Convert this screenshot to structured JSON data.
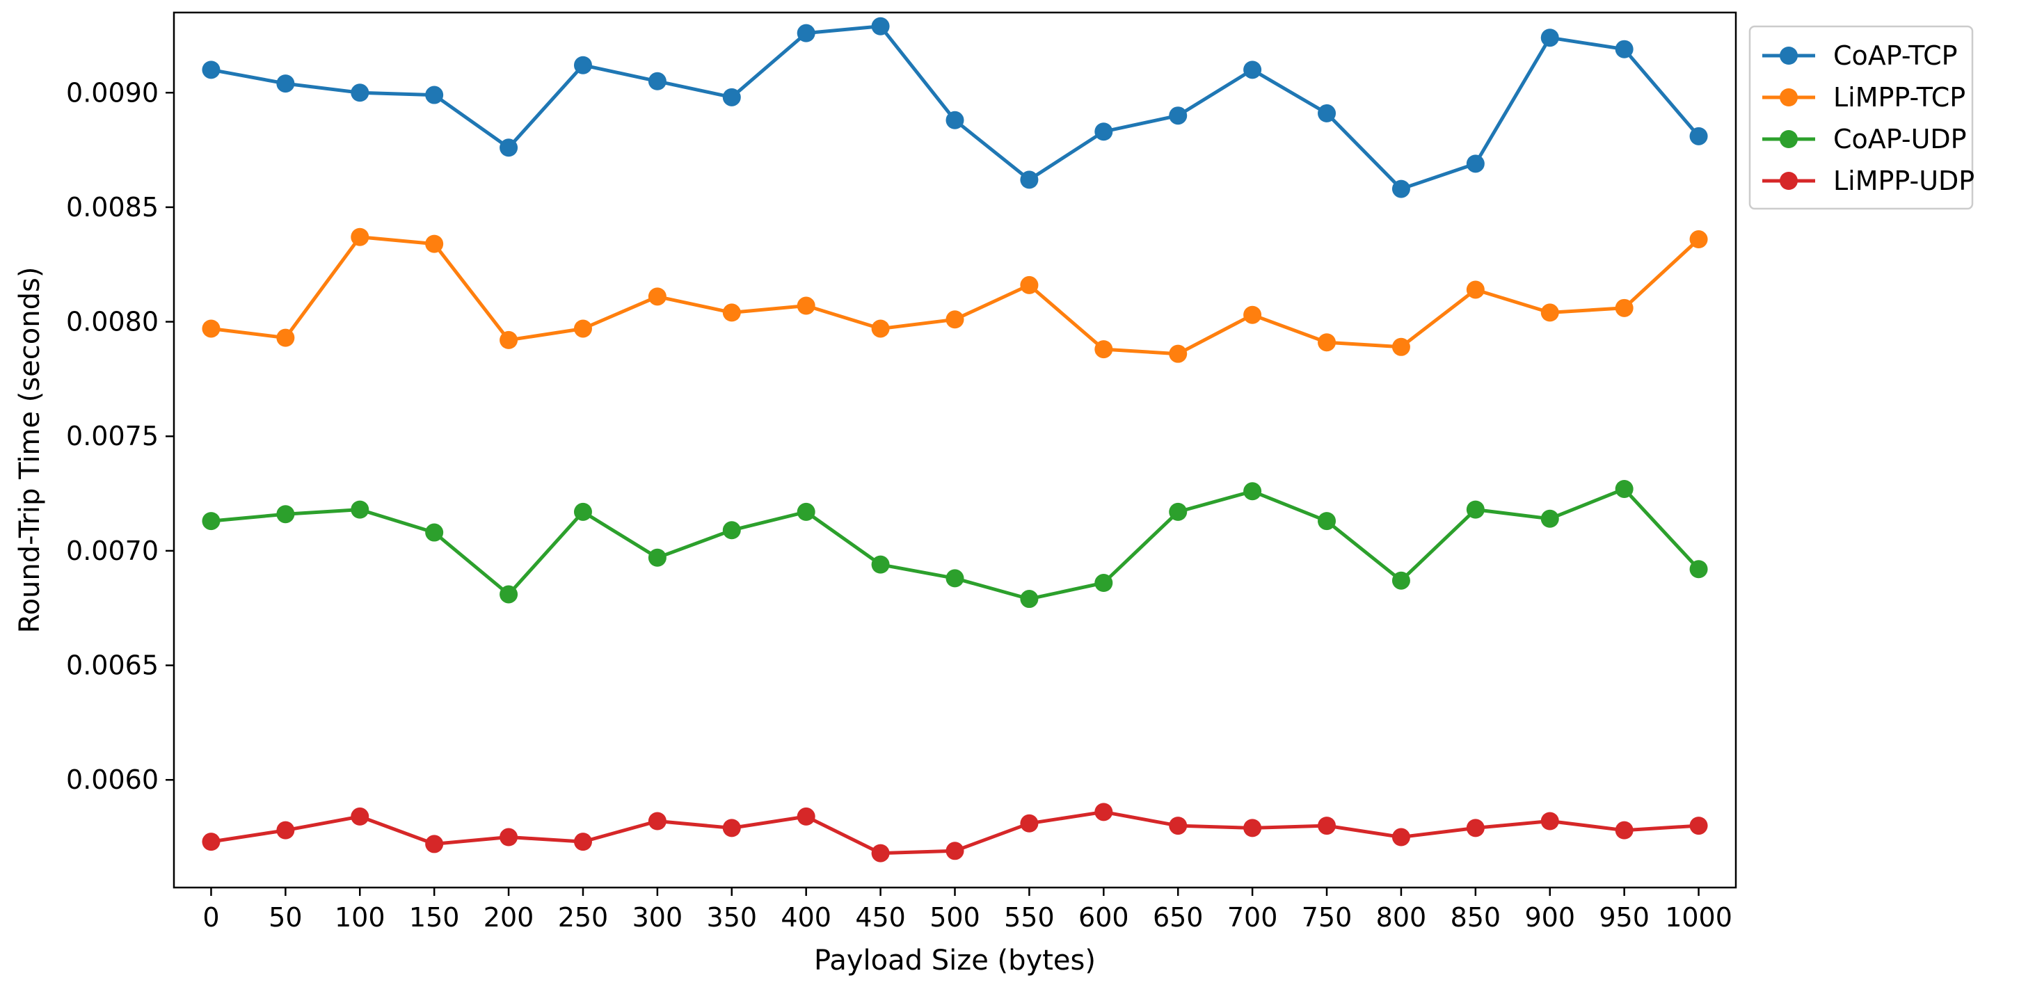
{
  "chart_data": {
    "type": "line",
    "title": "",
    "xlabel": "Payload Size (bytes)",
    "ylabel": "Round-Trip Time (seconds)",
    "x": [
      0,
      50,
      100,
      150,
      200,
      250,
      300,
      350,
      400,
      450,
      500,
      550,
      600,
      650,
      700,
      750,
      800,
      850,
      900,
      950,
      1000
    ],
    "x_tick_labels": [
      "0",
      "50",
      "100",
      "150",
      "200",
      "250",
      "300",
      "350",
      "400",
      "450",
      "500",
      "550",
      "600",
      "650",
      "700",
      "750",
      "800",
      "850",
      "900",
      "950",
      "1000"
    ],
    "y_tick_values": [
      0.006,
      0.0065,
      0.007,
      0.0075,
      0.008,
      0.0085,
      0.009
    ],
    "y_tick_labels": [
      "0.0060",
      "0.0065",
      "0.0070",
      "0.0075",
      "0.0080",
      "0.0085",
      "0.0090"
    ],
    "xlim": [
      -25,
      1025
    ],
    "ylim": [
      0.00553,
      0.00935
    ],
    "grid": false,
    "legend_position": "outside-top-right",
    "series": [
      {
        "name": "CoAP-TCP",
        "color": "#1f77b4",
        "values": [
          0.0091,
          0.00904,
          0.009,
          0.00899,
          0.00876,
          0.00912,
          0.00905,
          0.00898,
          0.00926,
          0.00929,
          0.00888,
          0.00862,
          0.00883,
          0.0089,
          0.0091,
          0.00891,
          0.00858,
          0.00869,
          0.00924,
          0.00919,
          0.00881
        ]
      },
      {
        "name": "LiMPP-TCP",
        "color": "#ff7f0e",
        "values": [
          0.00797,
          0.00793,
          0.00837,
          0.00834,
          0.00792,
          0.00797,
          0.00811,
          0.00804,
          0.00807,
          0.00797,
          0.00801,
          0.00816,
          0.00788,
          0.00786,
          0.00803,
          0.00791,
          0.00789,
          0.00814,
          0.00804,
          0.00806,
          0.00836
        ]
      },
      {
        "name": "CoAP-UDP",
        "color": "#2ca02c",
        "values": [
          0.00713,
          0.00716,
          0.00718,
          0.00708,
          0.00681,
          0.00717,
          0.00697,
          0.00709,
          0.00717,
          0.00694,
          0.00688,
          0.00679,
          0.00686,
          0.00717,
          0.00726,
          0.00713,
          0.00687,
          0.00718,
          0.00714,
          0.00727,
          0.00692
        ]
      },
      {
        "name": "LiMPP-UDP",
        "color": "#d62728",
        "values": [
          0.00573,
          0.00578,
          0.00584,
          0.00572,
          0.00575,
          0.00573,
          0.00582,
          0.00579,
          0.00584,
          0.00568,
          0.00569,
          0.00581,
          0.00586,
          0.0058,
          0.00579,
          0.0058,
          0.00575,
          0.00579,
          0.00582,
          0.00578,
          0.0058
        ]
      }
    ]
  }
}
